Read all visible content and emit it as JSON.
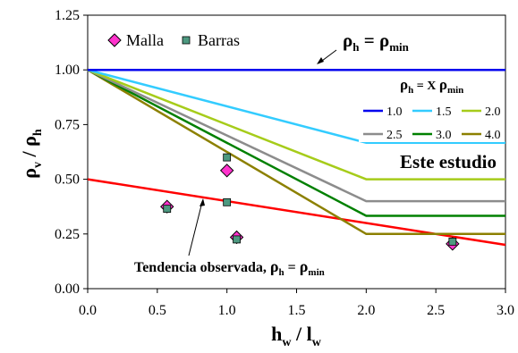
{
  "chart_data": {
    "type": "line",
    "xlabel": {
      "main": "h",
      "sub": "w",
      "sep": " / ",
      "main2": "l",
      "sub2": "w"
    },
    "ylabel": {
      "main": "ρ",
      "sub": "v",
      "sep": " / ",
      "main2": "ρ",
      "sub2": "h"
    },
    "xlim": [
      0,
      3
    ],
    "ylim": [
      0,
      1.25
    ],
    "x_ticks": [
      "0.0",
      "0.5",
      "1.0",
      "1.5",
      "2.0",
      "2.5",
      "3.0"
    ],
    "y_ticks": [
      "0.00",
      "0.25",
      "0.50",
      "0.75",
      "1.00",
      "1.25"
    ],
    "grid": false,
    "series": [
      {
        "name": "1.0",
        "color": "#0000ee",
        "x": [
          0,
          3
        ],
        "y": [
          1.0,
          1.0
        ]
      },
      {
        "name": "1.5",
        "color": "#33ccff",
        "x": [
          0,
          2,
          3
        ],
        "y": [
          1.0,
          0.667,
          0.667
        ]
      },
      {
        "name": "2.0",
        "color": "#a6cc1a",
        "x": [
          0,
          2,
          3
        ],
        "y": [
          1.0,
          0.5,
          0.5
        ]
      },
      {
        "name": "2.5",
        "color": "#8c8c8c",
        "x": [
          0,
          2,
          3
        ],
        "y": [
          1.0,
          0.4,
          0.4
        ]
      },
      {
        "name": "3.0",
        "color": "#008000",
        "x": [
          0,
          2,
          3
        ],
        "y": [
          1.0,
          0.333,
          0.333
        ]
      },
      {
        "name": "4.0",
        "color": "#8c8000",
        "x": [
          0,
          2,
          3
        ],
        "y": [
          1.0,
          0.25,
          0.25
        ]
      }
    ],
    "trend_line": {
      "color": "#ff0000",
      "x": [
        0,
        3
      ],
      "y": [
        0.5,
        0.2
      ]
    },
    "scatter": [
      {
        "name": "Malla",
        "marker": "diamond",
        "color": "#ff33cc",
        "points": [
          [
            0.57,
            0.375
          ],
          [
            1.0,
            0.54
          ],
          [
            1.07,
            0.235
          ],
          [
            2.62,
            0.205
          ]
        ]
      },
      {
        "name": "Barras",
        "marker": "square",
        "color": "#4d9980",
        "points": [
          [
            0.57,
            0.365
          ],
          [
            1.0,
            0.6
          ],
          [
            1.0,
            0.395
          ],
          [
            1.07,
            0.225
          ],
          [
            2.62,
            0.215
          ]
        ]
      }
    ],
    "legend": {
      "placement": "top-left",
      "items": [
        "Malla",
        "Barras"
      ]
    },
    "ratio_legend": {
      "title": {
        "main": "ρ",
        "sub": "h",
        "eq": " = X ",
        "main2": "ρ",
        "sub2": "min"
      },
      "items": [
        "1.0",
        "1.5",
        "2.0",
        "2.5",
        "3.0",
        "4.0"
      ]
    },
    "annotations": {
      "top": {
        "main": "ρ",
        "sub": "h",
        "eq": " = ",
        "main2": "ρ",
        "sub2": "min"
      },
      "study": "Este estudio",
      "trend": {
        "text": "Tendencia observada, ",
        "main": "ρ",
        "sub": "h",
        "eq": " = ",
        "main2": "ρ",
        "sub2": "min"
      }
    }
  }
}
